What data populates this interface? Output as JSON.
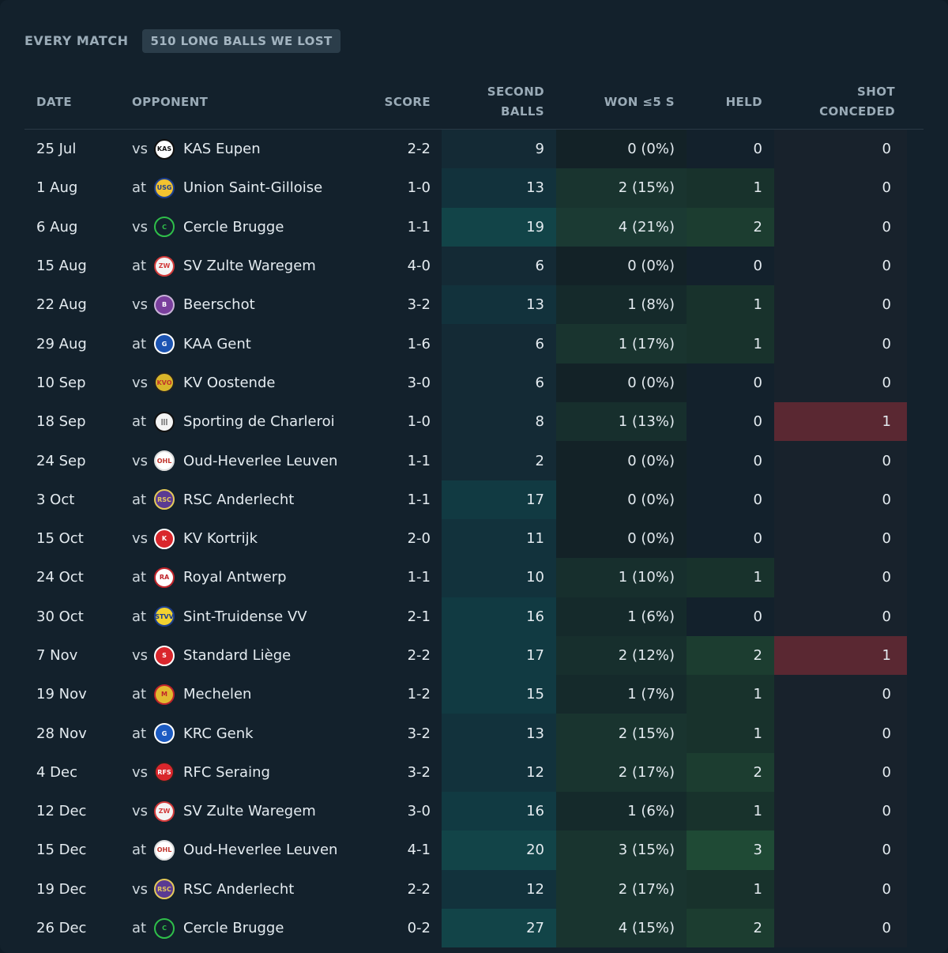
{
  "header": {
    "title": "EVERY MATCH",
    "badge": "510 LONG BALLS WE LOST"
  },
  "columns": {
    "date": "DATE",
    "opponent": "OPPONENT",
    "score": "SCORE",
    "second_balls": [
      "SECOND",
      "BALLS"
    ],
    "won": "WON ≤5 S",
    "held": "HELD",
    "shot_conceded": [
      "SHOT",
      "CONCEDED"
    ]
  },
  "colors": {
    "panel": "#13212c",
    "sb_high": "#12434a",
    "won_high": "#1c3a32",
    "held_high": "#1f4a35",
    "shot_high": "#5a2832",
    "shot_zero": "#18222c"
  },
  "matches": [
    {
      "date": "25 Jul",
      "venue": "vs",
      "opponent": "KAS Eupen",
      "crest": "eupen",
      "score": "2-2",
      "second_balls": "9",
      "won": "0 (0%)",
      "held": "0",
      "shot": "0"
    },
    {
      "date": "1 Aug",
      "venue": "at",
      "opponent": "Union Saint-Gilloise",
      "crest": "usg",
      "score": "1-0",
      "second_balls": "13",
      "won": "2 (15%)",
      "held": "1",
      "shot": "0"
    },
    {
      "date": "6 Aug",
      "venue": "vs",
      "opponent": "Cercle Brugge",
      "crest": "cercle",
      "score": "1-1",
      "second_balls": "19",
      "won": "4 (21%)",
      "held": "2",
      "shot": "0"
    },
    {
      "date": "15 Aug",
      "venue": "at",
      "opponent": "SV Zulte Waregem",
      "crest": "zulte",
      "score": "4-0",
      "second_balls": "6",
      "won": "0 (0%)",
      "held": "0",
      "shot": "0"
    },
    {
      "date": "22 Aug",
      "venue": "vs",
      "opponent": "Beerschot",
      "crest": "beerschot",
      "score": "3-2",
      "second_balls": "13",
      "won": "1 (8%)",
      "held": "1",
      "shot": "0"
    },
    {
      "date": "29 Aug",
      "venue": "at",
      "opponent": "KAA Gent",
      "crest": "gent",
      "score": "1-6",
      "second_balls": "6",
      "won": "1 (17%)",
      "held": "1",
      "shot": "0"
    },
    {
      "date": "10 Sep",
      "venue": "vs",
      "opponent": "KV Oostende",
      "crest": "oostende",
      "score": "3-0",
      "second_balls": "6",
      "won": "0 (0%)",
      "held": "0",
      "shot": "0"
    },
    {
      "date": "18 Sep",
      "venue": "at",
      "opponent": "Sporting de Charleroi",
      "crest": "charleroi",
      "score": "1-0",
      "second_balls": "8",
      "won": "1 (13%)",
      "held": "0",
      "shot": "1"
    },
    {
      "date": "24 Sep",
      "venue": "vs",
      "opponent": "Oud-Heverlee Leuven",
      "crest": "ohl",
      "score": "1-1",
      "second_balls": "2",
      "won": "0 (0%)",
      "held": "0",
      "shot": "0"
    },
    {
      "date": "3 Oct",
      "venue": "at",
      "opponent": "RSC Anderlecht",
      "crest": "anderlecht",
      "score": "1-1",
      "second_balls": "17",
      "won": "0 (0%)",
      "held": "0",
      "shot": "0"
    },
    {
      "date": "15 Oct",
      "venue": "vs",
      "opponent": "KV Kortrijk",
      "crest": "kortrijk",
      "score": "2-0",
      "second_balls": "11",
      "won": "0 (0%)",
      "held": "0",
      "shot": "0"
    },
    {
      "date": "24 Oct",
      "venue": "at",
      "opponent": "Royal Antwerp",
      "crest": "antwerp",
      "score": "1-1",
      "second_balls": "10",
      "won": "1 (10%)",
      "held": "1",
      "shot": "0"
    },
    {
      "date": "30 Oct",
      "venue": "at",
      "opponent": "Sint-Truidense VV",
      "crest": "stvv",
      "score": "2-1",
      "second_balls": "16",
      "won": "1 (6%)",
      "held": "0",
      "shot": "0"
    },
    {
      "date": "7 Nov",
      "venue": "vs",
      "opponent": "Standard Liège",
      "crest": "standard",
      "score": "2-2",
      "second_balls": "17",
      "won": "2 (12%)",
      "held": "2",
      "shot": "1"
    },
    {
      "date": "19 Nov",
      "venue": "at",
      "opponent": "Mechelen",
      "crest": "mechelen",
      "score": "1-2",
      "second_balls": "15",
      "won": "1 (7%)",
      "held": "1",
      "shot": "0"
    },
    {
      "date": "28 Nov",
      "venue": "at",
      "opponent": "KRC Genk",
      "crest": "genk",
      "score": "3-2",
      "second_balls": "13",
      "won": "2 (15%)",
      "held": "1",
      "shot": "0"
    },
    {
      "date": "4 Dec",
      "venue": "vs",
      "opponent": "RFC Seraing",
      "crest": "seraing",
      "score": "3-2",
      "second_balls": "12",
      "won": "2 (17%)",
      "held": "2",
      "shot": "0"
    },
    {
      "date": "12 Dec",
      "venue": "vs",
      "opponent": "SV Zulte Waregem",
      "crest": "zulte",
      "score": "3-0",
      "second_balls": "16",
      "won": "1 (6%)",
      "held": "1",
      "shot": "0"
    },
    {
      "date": "15 Dec",
      "venue": "at",
      "opponent": "Oud-Heverlee Leuven",
      "crest": "ohl",
      "score": "4-1",
      "second_balls": "20",
      "won": "3 (15%)",
      "held": "3",
      "shot": "0"
    },
    {
      "date": "19 Dec",
      "venue": "vs",
      "opponent": "RSC Anderlecht",
      "crest": "anderlecht",
      "score": "2-2",
      "second_balls": "12",
      "won": "2 (17%)",
      "held": "1",
      "shot": "0"
    },
    {
      "date": "26 Dec",
      "venue": "at",
      "opponent": "Cercle Brugge",
      "crest": "cercle",
      "score": "0-2",
      "second_balls": "27",
      "won": "4 (15%)",
      "held": "2",
      "shot": "0"
    }
  ]
}
